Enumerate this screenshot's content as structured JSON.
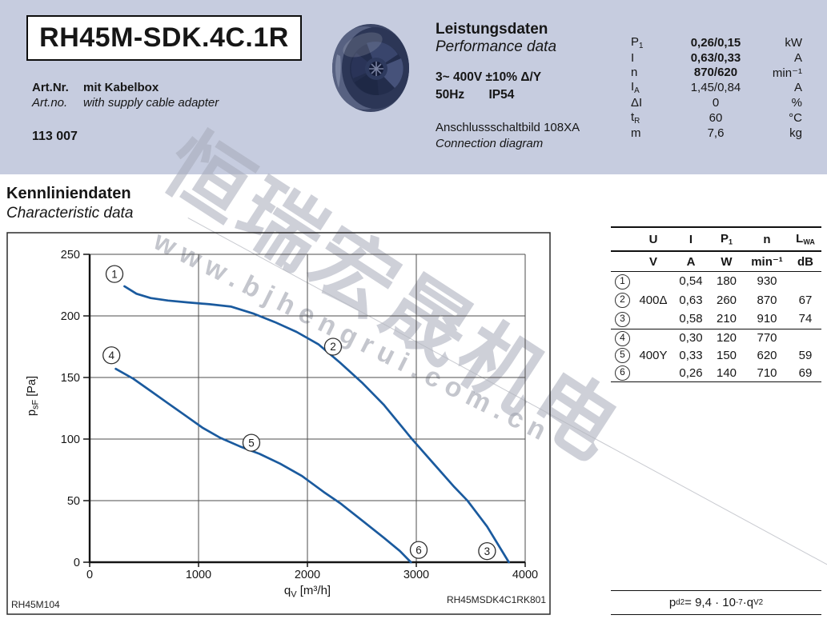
{
  "colors": {
    "page_bg": "#ffffff",
    "header_bg": "#c6ccdf",
    "curve_blue": "#1a5a9e",
    "grid_line": "#4d4d4d",
    "axis_line": "#141414",
    "text_dark": "#161616",
    "watermark_gray": "#b9bcc6"
  },
  "header": {
    "model": "RH45M-SDK.4C.1R",
    "art_label_de": "Art.Nr.",
    "art_value_de": "mit Kabelbox",
    "art_label_en": "Art.no.",
    "art_value_en": "with supply cable adapter",
    "art_number": "113 007",
    "section_title_de": "Leistungsdaten",
    "section_title_en": "Performance data",
    "voltage_line": "3~ 400V ±10% Δ/Y",
    "freq_line": "50Hz",
    "ip_line": "IP54",
    "connection_de": "Anschlussschaltbild 108XA",
    "connection_en": "Connection diagram",
    "perf_rows": [
      {
        "label": "P",
        "sub": "1",
        "value": "0,26/0,15",
        "unit": "kW",
        "bold": true
      },
      {
        "label": "I",
        "sub": "",
        "value": "0,63/0,33",
        "unit": "A",
        "bold": true
      },
      {
        "label": "n",
        "sub": "",
        "value": "870/620",
        "unit": "min⁻¹",
        "bold": true
      },
      {
        "label": "I",
        "sub": "A",
        "value": "1,45/0,84",
        "unit": "A",
        "bold": false
      },
      {
        "label": "ΔI",
        "sub": "",
        "value": "0",
        "unit": "%",
        "bold": false
      },
      {
        "label": "t",
        "sub": "R",
        "value": "60",
        "unit": "°C",
        "bold": false
      },
      {
        "label": "m",
        "sub": "",
        "value": "7,6",
        "unit": "kg",
        "bold": false
      }
    ]
  },
  "section": {
    "title_de": "Kennliniendaten",
    "title_en": "Characteristic data"
  },
  "chart_data": {
    "type": "line",
    "xlabel": {
      "base": "q",
      "sub": "V",
      "rest": " [m³/h]"
    },
    "ylabel": {
      "base": "p",
      "sub": "sF",
      "rest": " [Pa]"
    },
    "xlim": [
      0,
      4000
    ],
    "ylim": [
      0,
      250
    ],
    "xticks": [
      0,
      1000,
      2000,
      3000,
      4000
    ],
    "yticks": [
      0,
      50,
      100,
      150,
      200,
      250
    ],
    "grid": true,
    "code_left": "RH45M104",
    "code_right": "RH45MSDK4C1RK801",
    "series": [
      {
        "name": "delta-400V-curve-1-2-3",
        "color": "#1a5a9e",
        "points": [
          [
            320,
            224
          ],
          [
            430,
            218
          ],
          [
            560,
            214.5
          ],
          [
            720,
            212.5
          ],
          [
            900,
            211
          ],
          [
            1100,
            209.5
          ],
          [
            1300,
            207.5
          ],
          [
            1500,
            202
          ],
          [
            1700,
            195
          ],
          [
            1900,
            187
          ],
          [
            2100,
            177
          ],
          [
            2300,
            162
          ],
          [
            2500,
            146
          ],
          [
            2700,
            128
          ],
          [
            2960,
            100
          ],
          [
            3150,
            81
          ],
          [
            3350,
            61
          ],
          [
            3470,
            50
          ],
          [
            3650,
            29
          ],
          [
            3850,
            0
          ]
        ]
      },
      {
        "name": "star-400V-curve-4-5-6",
        "color": "#1a5a9e",
        "points": [
          [
            240,
            157
          ],
          [
            400,
            149
          ],
          [
            560,
            139
          ],
          [
            720,
            129
          ],
          [
            880,
            119
          ],
          [
            1040,
            109
          ],
          [
            1200,
            101
          ],
          [
            1380,
            94
          ],
          [
            1560,
            88
          ],
          [
            1750,
            80
          ],
          [
            1950,
            70
          ],
          [
            2150,
            57
          ],
          [
            2300,
            48
          ],
          [
            2500,
            34
          ],
          [
            2700,
            20
          ],
          [
            2850,
            9
          ],
          [
            2950,
            0
          ]
        ]
      }
    ],
    "point_labels": [
      {
        "n": "1",
        "x": 228,
        "y": 234
      },
      {
        "n": "2",
        "x": 2235,
        "y": 175
      },
      {
        "n": "3",
        "x": 3650,
        "y": 9
      },
      {
        "n": "4",
        "x": 200,
        "y": 168
      },
      {
        "n": "5",
        "x": 1485,
        "y": 97
      },
      {
        "n": "6",
        "x": 3022,
        "y": 10
      }
    ]
  },
  "side_table": {
    "col_headers": [
      {
        "t": "U",
        "sub": ""
      },
      {
        "t": "I",
        "sub": ""
      },
      {
        "t": "P",
        "sub": "1"
      },
      {
        "t": "n",
        "sub": ""
      },
      {
        "t": "L",
        "sub": "WA"
      }
    ],
    "col_units": [
      "V",
      "A",
      "W",
      "min⁻¹",
      "dB"
    ],
    "groups": [
      {
        "u": "400Δ",
        "rows": [
          {
            "n": "1",
            "i": "0,54",
            "p1": "180",
            "speed": "930",
            "lwa": ""
          },
          {
            "n": "2",
            "i": "0,63",
            "p1": "260",
            "speed": "870",
            "lwa": "67"
          },
          {
            "n": "3",
            "i": "0,58",
            "p1": "210",
            "speed": "910",
            "lwa": "74"
          }
        ]
      },
      {
        "u": "400Y",
        "rows": [
          {
            "n": "4",
            "i": "0,30",
            "p1": "120",
            "speed": "770",
            "lwa": ""
          },
          {
            "n": "5",
            "i": "0,33",
            "p1": "150",
            "speed": "620",
            "lwa": "59"
          },
          {
            "n": "6",
            "i": "0,26",
            "p1": "140",
            "speed": "710",
            "lwa": "69"
          }
        ]
      }
    ]
  },
  "formula": {
    "lhs": "p",
    "lhs_sub": "d2",
    "mid": " = 9,4 · 10",
    "exp": "-7",
    "mult": " · ",
    "rhs": "q",
    "rhs_sub": "V",
    "rhs_sup": "2"
  },
  "watermark": {
    "cjk": "恒瑞宏晟机电",
    "url": "www.bjhengrui.com.cn"
  }
}
